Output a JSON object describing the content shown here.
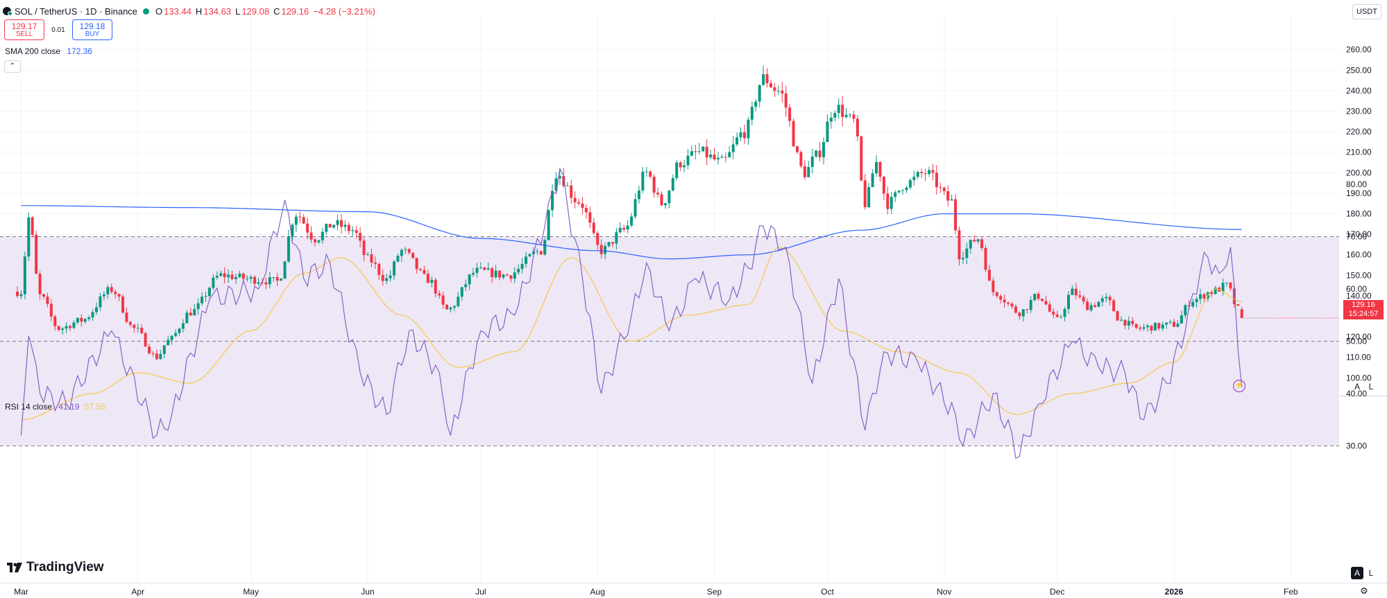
{
  "header": {
    "symbol": "SOL / TetherUS · 1D · Binance",
    "open_label": "O",
    "open": "133.44",
    "high_label": "H",
    "high": "134.63",
    "low_label": "L",
    "low": "129.08",
    "close_label": "C",
    "close": "129.16",
    "change": "−4.28 (−3.21%)"
  },
  "trade": {
    "sell_price": "129.17",
    "sell_label": "SELL",
    "spread": "0.01",
    "buy_price": "129.18",
    "buy_label": "BUY"
  },
  "indicators": {
    "sma_label": "SMA 200 close",
    "sma_value": "172.36",
    "rsi_label": "RSI 14 close",
    "rsi_value": "41.19",
    "rsi_ma_value": "57.55"
  },
  "currency": "USDT",
  "last_price": {
    "price": "129.16",
    "countdown": "15:24:57"
  },
  "scale_buttons": {
    "auto": "A",
    "log": "L"
  },
  "brand": "TradingView",
  "colors": {
    "up": "#089981",
    "down": "#f23645",
    "sma": "#2962ff",
    "rsi": "#7e57c2",
    "rsi_ma": "#f7c948",
    "rsi_band": "#ede7f6"
  },
  "chart_data": [
    {
      "type": "candlestick",
      "title": "SOL / TetherUS · 1D · Binance",
      "x_axis": {
        "tick_labels": [
          "Mar",
          "Apr",
          "May",
          "Jun",
          "Jul",
          "Aug",
          "Sep",
          "Oct",
          "Nov",
          "Dec",
          "2026",
          "Feb"
        ]
      },
      "y_axis": {
        "ticks": [
          "100.00",
          "110.00",
          "120.00",
          "130.00",
          "140.00",
          "150.00",
          "160.00",
          "170.00",
          "180.00",
          "190.00",
          "200.00",
          "210.00",
          "220.00",
          "230.00",
          "240.00",
          "250.00",
          "260.00"
        ],
        "range": [
          92,
          265
        ]
      },
      "grid": true,
      "anchors": [
        [
          "2025-03-01",
          142
        ],
        [
          "2025-03-03",
          178
        ],
        [
          "2025-03-06",
          140
        ],
        [
          "2025-03-11",
          124
        ],
        [
          "2025-03-17",
          128
        ],
        [
          "2025-03-25",
          143
        ],
        [
          "2025-03-31",
          124
        ],
        [
          "2025-04-06",
          110
        ],
        [
          "2025-04-09",
          118
        ],
        [
          "2025-04-15",
          132
        ],
        [
          "2025-04-23",
          150
        ],
        [
          "2025-05-02",
          148
        ],
        [
          "2025-05-08",
          147
        ],
        [
          "2025-05-13",
          180
        ],
        [
          "2025-05-18",
          168
        ],
        [
          "2025-05-23",
          175
        ],
        [
          "2025-05-28",
          172
        ],
        [
          "2025-06-01",
          158
        ],
        [
          "2025-06-06",
          148
        ],
        [
          "2025-06-10",
          162
        ],
        [
          "2025-06-17",
          148
        ],
        [
          "2025-06-22",
          133
        ],
        [
          "2025-06-30",
          152
        ],
        [
          "2025-07-08",
          150
        ],
        [
          "2025-07-17",
          162
        ],
        [
          "2025-07-21",
          200
        ],
        [
          "2025-07-27",
          186
        ],
        [
          "2025-08-02",
          162
        ],
        [
          "2025-08-08",
          172
        ],
        [
          "2025-08-14",
          200
        ],
        [
          "2025-08-18",
          185
        ],
        [
          "2025-08-23",
          205
        ],
        [
          "2025-08-28",
          210
        ],
        [
          "2025-09-03",
          205
        ],
        [
          "2025-09-09",
          220
        ],
        [
          "2025-09-14",
          246
        ],
        [
          "2025-09-18",
          240
        ],
        [
          "2025-09-25",
          200
        ],
        [
          "2025-09-28",
          208
        ],
        [
          "2025-10-03",
          232
        ],
        [
          "2025-10-08",
          225
        ],
        [
          "2025-10-11",
          185
        ],
        [
          "2025-10-14",
          205
        ],
        [
          "2025-10-17",
          185
        ],
        [
          "2025-10-22",
          195
        ],
        [
          "2025-10-27",
          200
        ],
        [
          "2025-11-03",
          186
        ],
        [
          "2025-11-05",
          160
        ],
        [
          "2025-11-10",
          168
        ],
        [
          "2025-11-14",
          142
        ],
        [
          "2025-11-21",
          132
        ],
        [
          "2025-11-26",
          140
        ],
        [
          "2025-12-01",
          128
        ],
        [
          "2025-12-05",
          142
        ],
        [
          "2025-12-09",
          135
        ],
        [
          "2025-12-14",
          138
        ],
        [
          "2025-12-18",
          128
        ],
        [
          "2025-12-22",
          124
        ],
        [
          "2025-12-27",
          125
        ],
        [
          "2026-01-01",
          126
        ],
        [
          "2026-01-06",
          138
        ],
        [
          "2026-01-11",
          142
        ],
        [
          "2026-01-15",
          145
        ],
        [
          "2026-01-18",
          133.44
        ],
        [
          "2026-01-19",
          129.16
        ]
      ],
      "last_candle": {
        "open": 133.44,
        "high": 134.63,
        "low": 129.08,
        "close": 129.16
      },
      "series": [
        {
          "name": "SMA 200 close",
          "points": [
            [
              "2025-03-01",
              184
            ],
            [
              "2025-04-15",
              183
            ],
            [
              "2025-06-01",
              181
            ],
            [
              "2025-07-01",
              168
            ],
            [
              "2025-08-01",
              162
            ],
            [
              "2025-08-20",
              158
            ],
            [
              "2025-09-10",
              160
            ],
            [
              "2025-10-10",
              172
            ],
            [
              "2025-11-01",
              180
            ],
            [
              "2025-11-20",
              180
            ],
            [
              "2026-01-19",
              172.36
            ]
          ]
        }
      ]
    },
    {
      "type": "line",
      "title": "RSI 14 close",
      "y_axis": {
        "ticks": [
          "30.00",
          "40.00",
          "50.00",
          "60.00",
          "70.00",
          "80.00"
        ],
        "range": [
          25,
          85
        ]
      },
      "bands": [
        30,
        50,
        70
      ],
      "series": [
        {
          "name": "RSI 14 close",
          "last": 41.19,
          "points": [
            [
              "2025-03-01",
              32
            ],
            [
              "2025-03-03",
              51
            ],
            [
              "2025-03-06",
              40
            ],
            [
              "2025-03-13",
              38
            ],
            [
              "2025-03-25",
              52
            ],
            [
              "2025-04-06",
              32
            ],
            [
              "2025-04-10",
              36
            ],
            [
              "2025-04-20",
              58
            ],
            [
              "2025-05-03",
              60
            ],
            [
              "2025-05-10",
              77
            ],
            [
              "2025-05-15",
              62
            ],
            [
              "2025-05-22",
              65
            ],
            [
              "2025-05-30",
              44
            ],
            [
              "2025-06-06",
              36
            ],
            [
              "2025-06-12",
              52
            ],
            [
              "2025-06-20",
              44
            ],
            [
              "2025-06-23",
              32
            ],
            [
              "2025-07-01",
              52
            ],
            [
              "2025-07-10",
              55
            ],
            [
              "2025-07-18",
              72
            ],
            [
              "2025-07-22",
              83
            ],
            [
              "2025-07-28",
              62
            ],
            [
              "2025-08-02",
              40
            ],
            [
              "2025-08-10",
              55
            ],
            [
              "2025-08-14",
              65
            ],
            [
              "2025-08-20",
              52
            ],
            [
              "2025-08-27",
              62
            ],
            [
              "2025-09-05",
              58
            ],
            [
              "2025-09-10",
              64
            ],
            [
              "2025-09-14",
              72
            ],
            [
              "2025-09-20",
              68
            ],
            [
              "2025-09-27",
              42
            ],
            [
              "2025-10-04",
              62
            ],
            [
              "2025-10-11",
              33
            ],
            [
              "2025-10-16",
              48
            ],
            [
              "2025-10-25",
              46
            ],
            [
              "2025-11-04",
              36
            ],
            [
              "2025-11-06",
              30
            ],
            [
              "2025-11-14",
              40
            ],
            [
              "2025-11-21",
              28
            ],
            [
              "2025-11-26",
              38
            ],
            [
              "2025-12-05",
              50
            ],
            [
              "2025-12-12",
              45
            ],
            [
              "2025-12-19",
              44
            ],
            [
              "2025-12-24",
              35
            ],
            [
              "2025-12-30",
              42
            ],
            [
              "2026-01-04",
              52
            ],
            [
              "2026-01-09",
              67
            ],
            [
              "2026-01-13",
              63
            ],
            [
              "2026-01-16",
              68
            ],
            [
              "2026-01-19",
              41.19
            ]
          ]
        },
        {
          "name": "RSI MA",
          "last": 57.55,
          "points": [
            [
              "2025-03-01",
              35
            ],
            [
              "2025-03-20",
              40
            ],
            [
              "2025-04-01",
              44
            ],
            [
              "2025-04-15",
              42
            ],
            [
              "2025-05-01",
              52
            ],
            [
              "2025-05-15",
              63
            ],
            [
              "2025-05-25",
              66
            ],
            [
              "2025-06-10",
              55
            ],
            [
              "2025-06-25",
              45
            ],
            [
              "2025-07-10",
              48
            ],
            [
              "2025-07-25",
              66
            ],
            [
              "2025-08-10",
              50
            ],
            [
              "2025-08-25",
              55
            ],
            [
              "2025-09-10",
              57
            ],
            [
              "2025-09-18",
              68
            ],
            [
              "2025-10-05",
              52
            ],
            [
              "2025-10-20",
              48
            ],
            [
              "2025-11-05",
              44
            ],
            [
              "2025-11-20",
              36
            ],
            [
              "2025-12-05",
              40
            ],
            [
              "2025-12-20",
              42
            ],
            [
              "2026-01-01",
              46
            ],
            [
              "2026-01-12",
              60
            ],
            [
              "2026-01-19",
              57.55
            ]
          ]
        }
      ]
    }
  ]
}
